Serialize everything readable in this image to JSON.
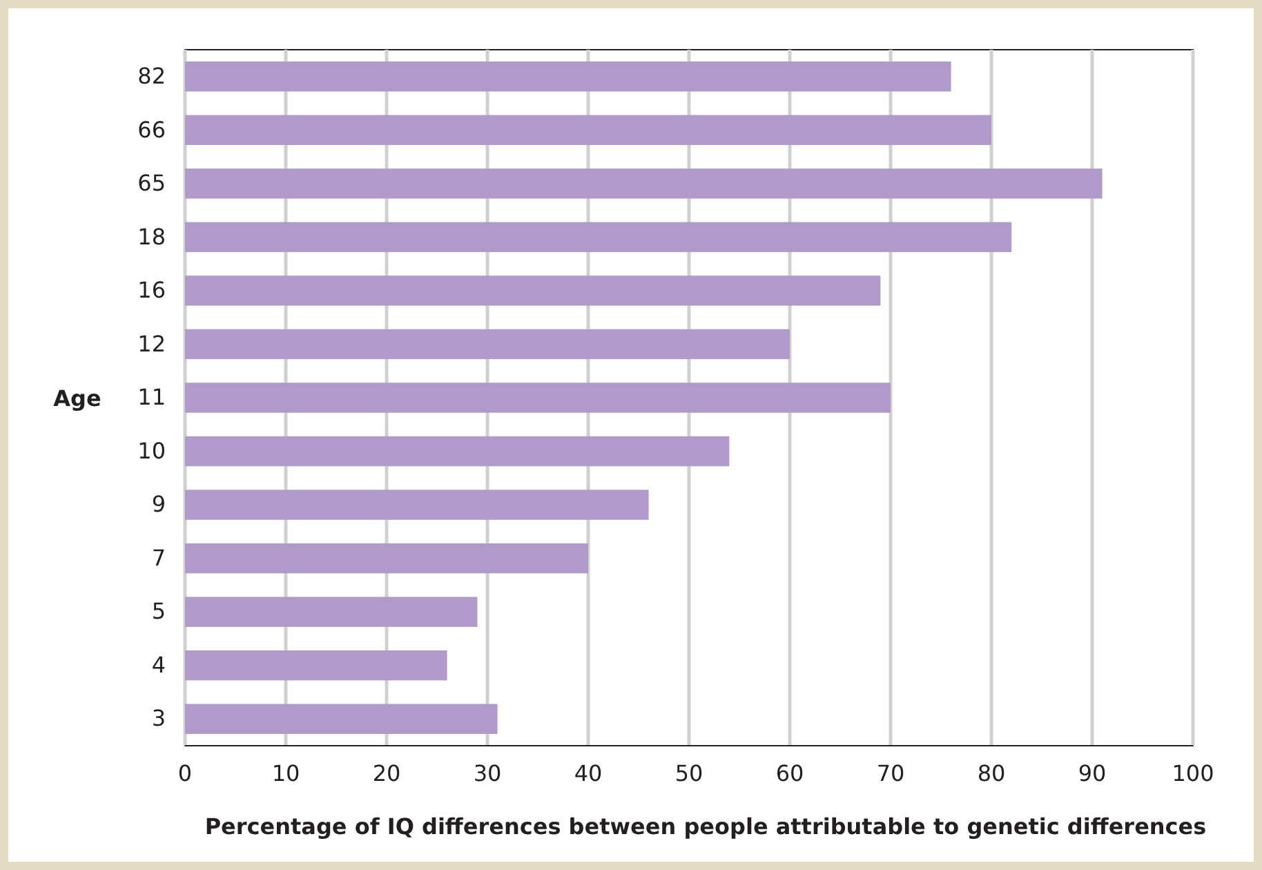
{
  "chart_data": {
    "type": "bar",
    "orientation": "horizontal",
    "categories": [
      "82",
      "66",
      "65",
      "18",
      "16",
      "12",
      "11",
      "10",
      "9",
      "7",
      "5",
      "4",
      "3"
    ],
    "values": [
      76,
      80,
      91,
      82,
      69,
      60,
      70,
      54,
      46,
      40,
      29,
      26,
      31
    ],
    "color": "#b09ac9",
    "xlim": [
      0,
      100
    ],
    "xticks": [
      0,
      10,
      20,
      30,
      40,
      50,
      60,
      70,
      80,
      90,
      100
    ],
    "grid": "x",
    "xlabel": "Percentage of IQ differences between people attributable to genetic differences",
    "ylabel": "Age"
  }
}
